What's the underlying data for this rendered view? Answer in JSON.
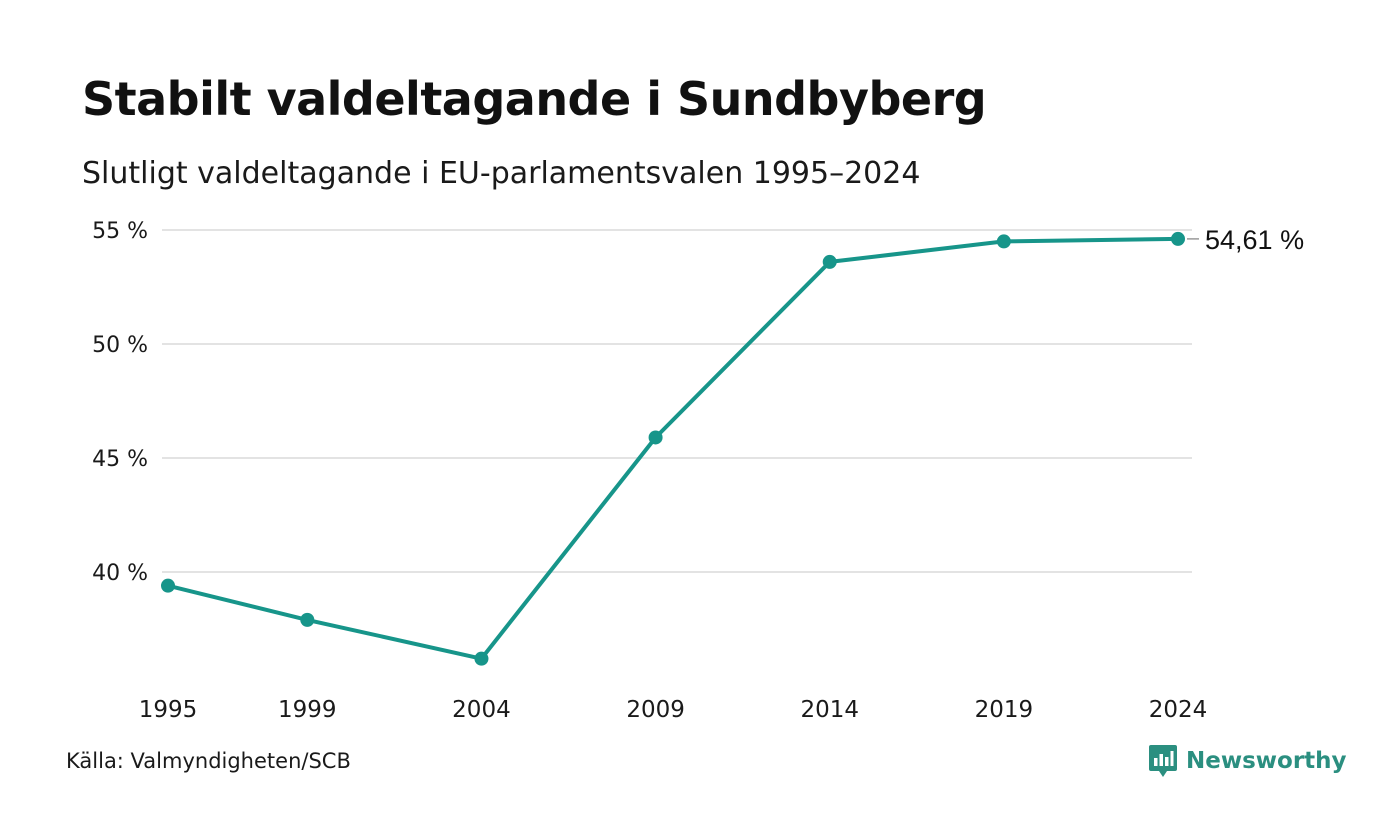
{
  "header": {
    "title": "Stabilt valdeltagande i Sundbyberg",
    "subtitle": "Slutligt valdeltagande i EU-parlamentsvalen 1995–2024"
  },
  "footer": {
    "source": "Källa: Valmyndigheten/SCB",
    "brand": "Newsworthy",
    "brand_icon": "newsworthy-logo-icon"
  },
  "colors": {
    "line": "#17958a",
    "grid": "#e3e3e3",
    "brand": "#2b8f80"
  },
  "chart_data": {
    "type": "line",
    "categories": [
      "1995",
      "1999",
      "2004",
      "2009",
      "2014",
      "2019",
      "2024"
    ],
    "series": [
      {
        "values": [
          39.4,
          37.9,
          36.2,
          45.9,
          53.6,
          54.5,
          54.61
        ]
      }
    ],
    "yticks": [
      40,
      45,
      50,
      55
    ],
    "ytick_labels": [
      "40 %",
      "45 %",
      "50 %",
      "55 %"
    ],
    "ylim": [
      34.8,
      56.2
    ],
    "end_label": "54,61 %",
    "grid": true,
    "xlabel": "",
    "ylabel": ""
  }
}
